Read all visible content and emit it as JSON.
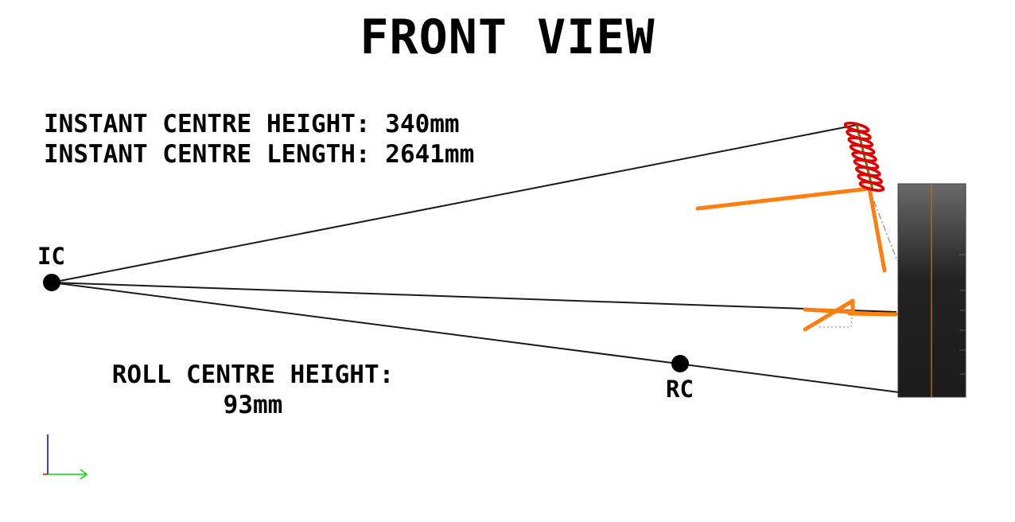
{
  "title": "FRONT VIEW",
  "instant_centre": {
    "height_label": "INSTANT CENTRE HEIGHT:",
    "height_value": "340mm",
    "length_label": "INSTANT CENTRE LENGTH:",
    "length_value": "2641mm"
  },
  "roll_centre": {
    "height_label": "ROLL CENTRE HEIGHT:",
    "height_value": "93mm"
  },
  "points": {
    "ic_label": "IC",
    "rc_label": "RC"
  },
  "colors": {
    "construction_line": "#1a1a1a",
    "suspension_link": "#ff7f0e",
    "spring": "#e00000",
    "spring_core": "#5a7a10",
    "tyre_dark": "#202020",
    "tyre_light": "#6a6a6a",
    "tyre_centreline": "#b06a10",
    "axis_x": "#00dd00",
    "axis_y": "#0000cc",
    "axis_z": "#dd0000"
  }
}
